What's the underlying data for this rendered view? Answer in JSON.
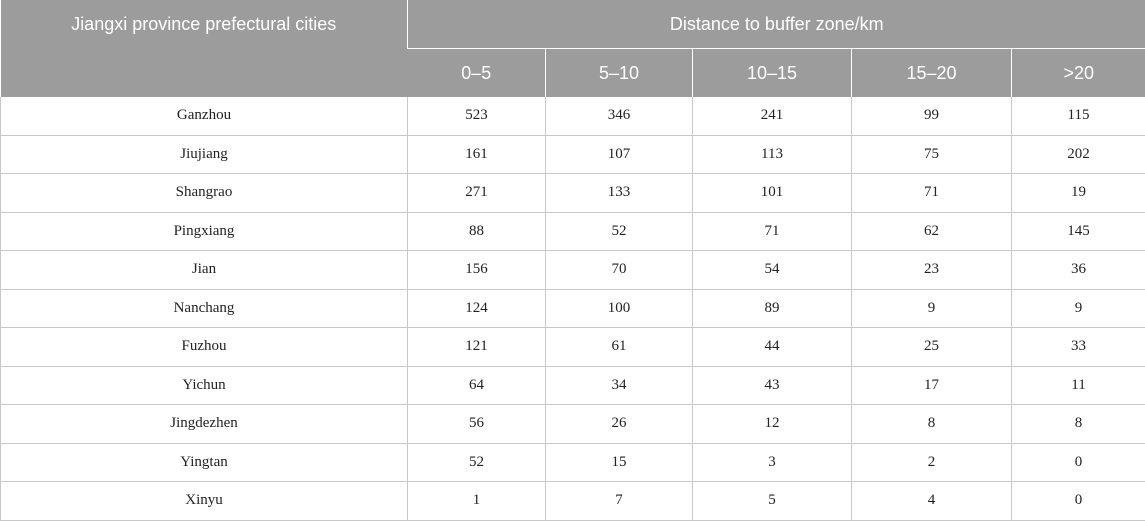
{
  "table": {
    "city_header": "Jiangxi province prefectural cities",
    "group_header": "Distance to buffer zone/km",
    "ranges": [
      "0–5",
      "5–10",
      "10–15",
      "15–20",
      ">20"
    ],
    "rows": [
      {
        "city": "Ganzhou",
        "values": [
          "523",
          "346",
          "241",
          "99",
          "115"
        ]
      },
      {
        "city": "Jiujiang",
        "values": [
          "161",
          "107",
          "113",
          "75",
          "202"
        ]
      },
      {
        "city": "Shangrao",
        "values": [
          "271",
          "133",
          "101",
          "71",
          "19"
        ]
      },
      {
        "city": "Pingxiang",
        "values": [
          "88",
          "52",
          "71",
          "62",
          "145"
        ]
      },
      {
        "city": "Jian",
        "values": [
          "156",
          "70",
          "54",
          "23",
          "36"
        ]
      },
      {
        "city": "Nanchang",
        "values": [
          "124",
          "100",
          "89",
          "9",
          "9"
        ]
      },
      {
        "city": "Fuzhou",
        "values": [
          "121",
          "61",
          "44",
          "25",
          "33"
        ]
      },
      {
        "city": "Yichun",
        "values": [
          "64",
          "34",
          "43",
          "17",
          "11"
        ]
      },
      {
        "city": "Jingdezhen",
        "values": [
          "56",
          "26",
          "12",
          "8",
          "8"
        ]
      },
      {
        "city": "Yingtan",
        "values": [
          "52",
          "15",
          "3",
          "2",
          "0"
        ]
      },
      {
        "city": "Xinyu",
        "values": [
          "1",
          "7",
          "5",
          "4",
          "0"
        ]
      }
    ]
  }
}
